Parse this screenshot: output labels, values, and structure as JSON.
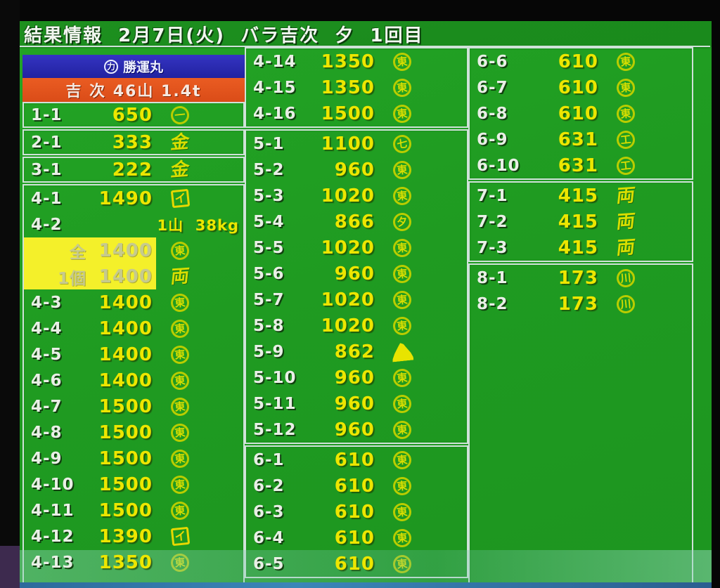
{
  "title": "結果情報  2月7日(火)  バラ吉次  夕  1回目",
  "colors": {
    "screen_green": "#1f9b21",
    "value_yellow": "#ede600",
    "label_white": "#e9efe6",
    "mark_yellow": "#d9de00",
    "header_blue": "#2a2ab0",
    "header_orange": "#e2531c",
    "highlight_yellow": "#f4f02a"
  },
  "left_panel": {
    "ship": {
      "mark_char": "力",
      "name": "勝運丸"
    },
    "lot": "吉 次 46山 1.4t"
  },
  "columns": [
    {
      "name": "left",
      "boxes": [
        {
          "rows": [
            {
              "label": "1-1",
              "value": "650",
              "mark": {
                "shape": "circle",
                "char": "一"
              }
            }
          ]
        },
        {
          "rows": [
            {
              "label": "2-1",
              "value": "333",
              "mark": {
                "shape": "plain",
                "char": "金"
              }
            }
          ]
        },
        {
          "rows": [
            {
              "label": "3-1",
              "value": "222",
              "mark": {
                "shape": "plain",
                "char": "金"
              }
            }
          ]
        },
        {
          "fill": true,
          "rows": [
            {
              "label": "4-1",
              "value": "1490",
              "mark": {
                "shape": "square",
                "char": "イ"
              }
            },
            {
              "label": "4-2",
              "note": "1山  38kg"
            },
            {
              "label": "全",
              "value": "1400",
              "highlight": true,
              "mark": {
                "shape": "circle",
                "char": "東"
              }
            },
            {
              "label": "1個",
              "value": "1400",
              "highlight": true,
              "mark": {
                "shape": "plain",
                "char": "両"
              }
            },
            {
              "label": "4-3",
              "value": "1400",
              "mark": {
                "shape": "circle",
                "char": "東"
              }
            },
            {
              "label": "4-4",
              "value": "1400",
              "mark": {
                "shape": "circle",
                "char": "東"
              }
            },
            {
              "label": "4-5",
              "value": "1400",
              "mark": {
                "shape": "circle",
                "char": "東"
              }
            },
            {
              "label": "4-6",
              "value": "1400",
              "mark": {
                "shape": "circle",
                "char": "東"
              }
            },
            {
              "label": "4-7",
              "value": "1500",
              "mark": {
                "shape": "circle",
                "char": "東"
              }
            },
            {
              "label": "4-8",
              "value": "1500",
              "mark": {
                "shape": "circle",
                "char": "東"
              }
            },
            {
              "label": "4-9",
              "value": "1500",
              "mark": {
                "shape": "circle",
                "char": "東"
              }
            },
            {
              "label": "4-10",
              "value": "1500",
              "mark": {
                "shape": "circle",
                "char": "東"
              }
            },
            {
              "label": "4-11",
              "value": "1500",
              "mark": {
                "shape": "circle",
                "char": "東"
              }
            },
            {
              "label": "4-12",
              "value": "1390",
              "mark": {
                "shape": "square",
                "char": "イ"
              }
            },
            {
              "label": "4-13",
              "value": "1350",
              "mark": {
                "shape": "circle",
                "char": "東"
              }
            }
          ]
        }
      ]
    },
    {
      "name": "middle",
      "boxes": [
        {
          "rows": [
            {
              "label": "4-14",
              "value": "1350",
              "mark": {
                "shape": "circle",
                "char": "東"
              }
            },
            {
              "label": "4-15",
              "value": "1350",
              "mark": {
                "shape": "circle",
                "char": "東"
              }
            },
            {
              "label": "4-16",
              "value": "1500",
              "mark": {
                "shape": "circle",
                "char": "東"
              }
            }
          ]
        },
        {
          "rows": [
            {
              "label": "5-1",
              "value": "1100",
              "mark": {
                "shape": "circle",
                "char": "七"
              }
            },
            {
              "label": "5-2",
              "value": "960",
              "mark": {
                "shape": "circle",
                "char": "東"
              }
            },
            {
              "label": "5-3",
              "value": "1020",
              "mark": {
                "shape": "circle",
                "char": "東"
              }
            },
            {
              "label": "5-4",
              "value": "866",
              "mark": {
                "shape": "circle",
                "char": "夕"
              }
            },
            {
              "label": "5-5",
              "value": "1020",
              "mark": {
                "shape": "circle",
                "char": "東"
              }
            },
            {
              "label": "5-6",
              "value": "960",
              "mark": {
                "shape": "circle",
                "char": "東"
              }
            },
            {
              "label": "5-7",
              "value": "1020",
              "mark": {
                "shape": "circle",
                "char": "東"
              }
            },
            {
              "label": "5-8",
              "value": "1020",
              "mark": {
                "shape": "circle",
                "char": "東"
              }
            },
            {
              "label": "5-9",
              "value": "862",
              "mark": {
                "shape": "solid",
                "char": ""
              }
            },
            {
              "label": "5-10",
              "value": "960",
              "mark": {
                "shape": "circle",
                "char": "東"
              }
            },
            {
              "label": "5-11",
              "value": "960",
              "mark": {
                "shape": "circle",
                "char": "東"
              }
            },
            {
              "label": "5-12",
              "value": "960",
              "mark": {
                "shape": "circle",
                "char": "東"
              }
            }
          ]
        },
        {
          "rows": [
            {
              "label": "6-1",
              "value": "610",
              "mark": {
                "shape": "circle",
                "char": "東"
              }
            },
            {
              "label": "6-2",
              "value": "610",
              "mark": {
                "shape": "circle",
                "char": "東"
              }
            },
            {
              "label": "6-3",
              "value": "610",
              "mark": {
                "shape": "circle",
                "char": "東"
              }
            },
            {
              "label": "6-4",
              "value": "610",
              "mark": {
                "shape": "circle",
                "char": "東"
              }
            },
            {
              "label": "6-5",
              "value": "610",
              "mark": {
                "shape": "circle",
                "char": "東"
              }
            }
          ]
        }
      ]
    },
    {
      "name": "right",
      "boxes": [
        {
          "rows": [
            {
              "label": "6-6",
              "value": "610",
              "mark": {
                "shape": "circle",
                "char": "東"
              }
            },
            {
              "label": "6-7",
              "value": "610",
              "mark": {
                "shape": "circle",
                "char": "東"
              }
            },
            {
              "label": "6-8",
              "value": "610",
              "mark": {
                "shape": "circle",
                "char": "東"
              }
            },
            {
              "label": "6-9",
              "value": "631",
              "mark": {
                "shape": "circle",
                "char": "工"
              }
            },
            {
              "label": "6-10",
              "value": "631",
              "mark": {
                "shape": "circle",
                "char": "工"
              }
            }
          ]
        },
        {
          "rows": [
            {
              "label": "7-1",
              "value": "415",
              "mark": {
                "shape": "plain",
                "char": "両"
              }
            },
            {
              "label": "7-2",
              "value": "415",
              "mark": {
                "shape": "plain",
                "char": "両"
              }
            },
            {
              "label": "7-3",
              "value": "415",
              "mark": {
                "shape": "plain",
                "char": "両"
              }
            }
          ]
        },
        {
          "fill": true,
          "rows": [
            {
              "label": "8-1",
              "value": "173",
              "mark": {
                "shape": "circle",
                "char": "川"
              }
            },
            {
              "label": "8-2",
              "value": "173",
              "mark": {
                "shape": "circle",
                "char": "川"
              }
            }
          ]
        }
      ]
    }
  ]
}
